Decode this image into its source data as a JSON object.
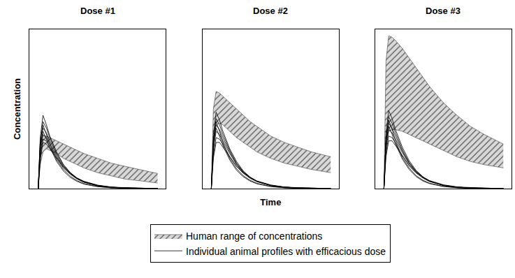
{
  "chart_data": {
    "type": "line",
    "xlabel": "Time",
    "ylabel": "Concentration",
    "xlim": [
      0,
      20
    ],
    "ylim": [
      0,
      10
    ],
    "tick_labels": false,
    "grid": false,
    "legend": "bottom",
    "x": [
      1.3,
      1.6,
      2,
      2.5,
      3,
      4,
      5,
      6,
      7,
      8,
      10,
      12,
      14,
      16,
      18.8
    ],
    "series": [
      {
        "name": "Human range of concentrations",
        "type": "area",
        "color": "#555555"
      },
      {
        "name": "Individual animal profiles with efficacious dose",
        "type": "line",
        "color": "#000000"
      }
    ],
    "panels": [
      {
        "title": "Dose #1",
        "human_lower": [
          0,
          1.5,
          2.3,
          2.5,
          2.4,
          2.2,
          1.9,
          1.7,
          1.5,
          1.3,
          1.0,
          0.8,
          0.6,
          0.5,
          0.35
        ],
        "human_upper": [
          0,
          3.0,
          3.3,
          3.3,
          3.2,
          3.0,
          2.8,
          2.6,
          2.4,
          2.2,
          1.9,
          1.6,
          1.4,
          1.2,
          0.95
        ],
        "animal_profiles": [
          [
            0,
            3.2,
            4.6,
            4.0,
            3.3,
            2.3,
            1.5,
            1.0,
            0.65,
            0.42,
            0.18,
            0.08,
            0.04,
            0.02,
            0.01
          ],
          [
            0,
            2.8,
            4.2,
            3.8,
            3.2,
            2.2,
            1.5,
            1.0,
            0.66,
            0.44,
            0.2,
            0.09,
            0.04,
            0.02,
            0.01
          ],
          [
            0,
            2.5,
            3.8,
            3.5,
            3.0,
            2.1,
            1.4,
            0.95,
            0.62,
            0.4,
            0.18,
            0.08,
            0.04,
            0.02,
            0.01
          ],
          [
            0,
            2.2,
            3.4,
            3.2,
            2.8,
            2.0,
            1.4,
            0.95,
            0.64,
            0.43,
            0.2,
            0.09,
            0.04,
            0.02,
            0.01
          ],
          [
            0,
            2.0,
            3.1,
            3.0,
            2.6,
            1.9,
            1.3,
            0.9,
            0.6,
            0.4,
            0.18,
            0.08,
            0.04,
            0.02,
            0.01
          ],
          [
            0,
            2.6,
            3.6,
            3.1,
            2.6,
            1.7,
            1.1,
            0.7,
            0.45,
            0.28,
            0.12,
            0.05,
            0.02,
            0.01,
            0
          ],
          [
            0,
            1.8,
            2.9,
            2.8,
            2.5,
            1.9,
            1.35,
            0.95,
            0.66,
            0.46,
            0.22,
            0.1,
            0.05,
            0.02,
            0.01
          ],
          [
            0,
            3.0,
            4.0,
            3.4,
            2.8,
            1.8,
            1.2,
            0.78,
            0.5,
            0.32,
            0.13,
            0.05,
            0.02,
            0.01,
            0
          ]
        ]
      },
      {
        "title": "Dose #2",
        "human_lower": [
          0,
          3.0,
          4.0,
          4.1,
          4.0,
          3.6,
          3.2,
          2.9,
          2.6,
          2.3,
          1.9,
          1.6,
          1.4,
          1.2,
          1.0
        ],
        "human_upper": [
          0,
          5.0,
          6.1,
          6.0,
          5.8,
          5.4,
          5.0,
          4.6,
          4.2,
          3.9,
          3.3,
          2.9,
          2.6,
          2.3,
          2.0
        ],
        "animal_profiles": [
          [
            0,
            3.4,
            4.8,
            4.3,
            3.6,
            2.5,
            1.7,
            1.1,
            0.72,
            0.46,
            0.2,
            0.09,
            0.04,
            0.02,
            0.01
          ],
          [
            0,
            3.0,
            4.4,
            4.0,
            3.4,
            2.4,
            1.6,
            1.05,
            0.7,
            0.45,
            0.2,
            0.09,
            0.04,
            0.02,
            0.01
          ],
          [
            0,
            2.7,
            4.0,
            3.7,
            3.2,
            2.3,
            1.55,
            1.05,
            0.7,
            0.46,
            0.21,
            0.09,
            0.04,
            0.02,
            0.01
          ],
          [
            0,
            2.4,
            3.6,
            3.4,
            3.0,
            2.2,
            1.5,
            1.0,
            0.68,
            0.45,
            0.2,
            0.09,
            0.04,
            0.02,
            0.01
          ],
          [
            0,
            2.1,
            3.2,
            3.1,
            2.8,
            2.0,
            1.4,
            0.95,
            0.64,
            0.43,
            0.19,
            0.08,
            0.04,
            0.02,
            0.01
          ],
          [
            0,
            2.8,
            3.8,
            3.3,
            2.7,
            1.8,
            1.15,
            0.74,
            0.47,
            0.3,
            0.12,
            0.05,
            0.02,
            0.01,
            0
          ],
          [
            0,
            1.9,
            2.9,
            2.9,
            2.6,
            2.0,
            1.4,
            1.0,
            0.7,
            0.48,
            0.23,
            0.1,
            0.05,
            0.02,
            0.01
          ],
          [
            0,
            3.1,
            4.2,
            3.6,
            2.9,
            1.9,
            1.25,
            0.8,
            0.52,
            0.33,
            0.14,
            0.06,
            0.02,
            0.01,
            0
          ]
        ]
      },
      {
        "title": "Dose #3",
        "human_lower": [
          0,
          2.5,
          3.6,
          3.7,
          3.7,
          3.6,
          3.4,
          3.2,
          3.0,
          2.8,
          2.4,
          2.0,
          1.7,
          1.5,
          1.3
        ],
        "human_upper": [
          0,
          8.0,
          9.6,
          9.5,
          9.3,
          8.8,
          8.2,
          7.6,
          7.0,
          6.4,
          5.4,
          4.6,
          3.9,
          3.4,
          2.8
        ],
        "animal_profiles": [
          [
            0,
            3.5,
            4.9,
            4.4,
            3.7,
            2.6,
            1.75,
            1.15,
            0.75,
            0.48,
            0.21,
            0.09,
            0.04,
            0.02,
            0.01
          ],
          [
            0,
            3.1,
            4.5,
            4.1,
            3.5,
            2.45,
            1.65,
            1.1,
            0.72,
            0.46,
            0.2,
            0.09,
            0.04,
            0.02,
            0.01
          ],
          [
            0,
            2.8,
            4.1,
            3.8,
            3.3,
            2.35,
            1.6,
            1.08,
            0.72,
            0.47,
            0.21,
            0.09,
            0.04,
            0.02,
            0.01
          ],
          [
            0,
            2.5,
            3.7,
            3.5,
            3.1,
            2.25,
            1.55,
            1.05,
            0.7,
            0.46,
            0.21,
            0.09,
            0.04,
            0.02,
            0.01
          ],
          [
            0,
            2.2,
            3.3,
            3.2,
            2.85,
            2.05,
            1.45,
            0.98,
            0.66,
            0.44,
            0.2,
            0.08,
            0.04,
            0.02,
            0.01
          ],
          [
            0,
            2.9,
            3.9,
            3.4,
            2.8,
            1.85,
            1.2,
            0.76,
            0.48,
            0.31,
            0.13,
            0.05,
            0.02,
            0.01,
            0
          ],
          [
            0,
            2.0,
            3.0,
            3.0,
            2.7,
            2.05,
            1.45,
            1.02,
            0.72,
            0.5,
            0.24,
            0.11,
            0.05,
            0.02,
            0.01
          ],
          [
            0,
            3.2,
            4.3,
            3.7,
            3.0,
            1.95,
            1.3,
            0.82,
            0.53,
            0.34,
            0.14,
            0.06,
            0.02,
            0.01,
            0
          ]
        ]
      }
    ]
  }
}
